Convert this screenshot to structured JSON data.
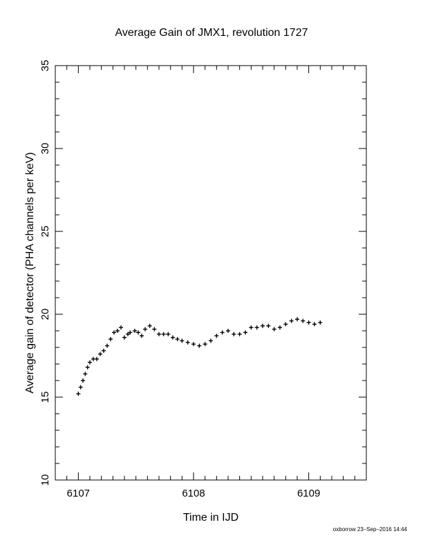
{
  "chart_data": {
    "type": "scatter",
    "title": "Average Gain of JMX1, revolution 1727",
    "xlabel": "Time in IJD",
    "ylabel": "Average gain of detector (PHA channels per keV)",
    "xlim": [
      6106.8,
      6109.5
    ],
    "ylim": [
      10,
      35
    ],
    "x_ticks": [
      "6107",
      "6108",
      "6109"
    ],
    "y_ticks": [
      "10",
      "15",
      "20",
      "25",
      "30",
      "35"
    ],
    "grid": false,
    "marker": "cross",
    "series": [
      {
        "x": [
          6107.0,
          6107.02,
          6107.04,
          6107.06,
          6107.08,
          6107.1,
          6107.13,
          6107.16,
          6107.19,
          6107.22,
          6107.25,
          6107.28,
          6107.31,
          6107.34,
          6107.37,
          6107.4,
          6107.43,
          6107.45,
          6107.49,
          6107.52,
          6107.55,
          6107.58,
          6107.62,
          6107.66,
          6107.7,
          6107.74,
          6107.78,
          6107.82,
          6107.86,
          6107.9,
          6107.95,
          6108.0,
          6108.05,
          6108.1,
          6108.15,
          6108.2,
          6108.25,
          6108.3,
          6108.35,
          6108.4,
          6108.45,
          6108.5,
          6108.55,
          6108.6,
          6108.65,
          6108.7,
          6108.75,
          6108.8,
          6108.85,
          6108.9,
          6108.95,
          6109.0,
          6109.05,
          6109.1
        ],
        "y": [
          15.2,
          15.6,
          16.0,
          16.4,
          16.8,
          17.1,
          17.3,
          17.3,
          17.6,
          17.8,
          18.1,
          18.5,
          18.9,
          19.0,
          19.2,
          18.6,
          18.8,
          18.9,
          19.0,
          18.9,
          18.7,
          19.1,
          19.3,
          19.1,
          18.8,
          18.8,
          18.8,
          18.6,
          18.5,
          18.4,
          18.3,
          18.2,
          18.1,
          18.2,
          18.4,
          18.7,
          18.9,
          19.0,
          18.8,
          18.8,
          18.9,
          19.2,
          19.2,
          19.3,
          19.3,
          19.1,
          19.2,
          19.4,
          19.6,
          19.7,
          19.6,
          19.5,
          19.4,
          19.5
        ],
        "_fix_note": ""
      }
    ]
  },
  "footer": {
    "credit": "oxborrow 23–Sep–2016 14:44"
  }
}
